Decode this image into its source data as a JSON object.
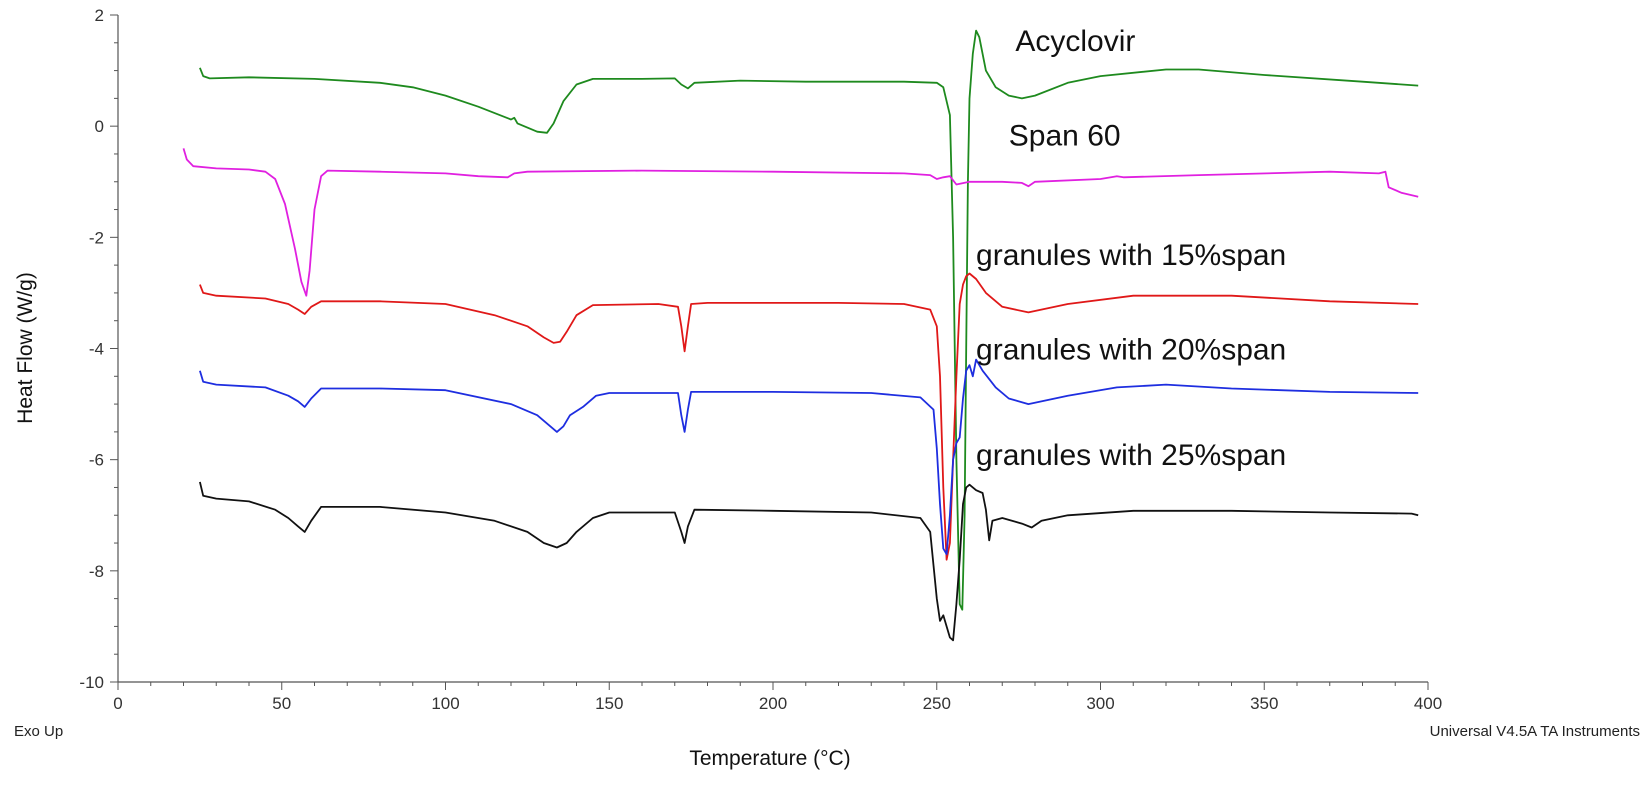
{
  "chart_data": {
    "type": "line",
    "xlabel": "Temperature (°C)",
    "ylabel": "Heat Flow (W/g)",
    "xlim": [
      0,
      400
    ],
    "ylim": [
      -10,
      2
    ],
    "x_ticks": [
      0,
      50,
      100,
      150,
      200,
      250,
      300,
      350,
      400
    ],
    "y_ticks": [
      2,
      0,
      -2,
      -4,
      -6,
      -8,
      -10
    ],
    "grid": false,
    "legend": "inline labels at right",
    "footer_left": "Exo Up",
    "footer_right": "Universal V4.5A TA Instruments",
    "series": [
      {
        "name": "Acyclovir",
        "color": "#1e8a1e",
        "points": [
          [
            25,
            1.05
          ],
          [
            26,
            0.9
          ],
          [
            28,
            0.86
          ],
          [
            40,
            0.88
          ],
          [
            60,
            0.85
          ],
          [
            80,
            0.78
          ],
          [
            90,
            0.7
          ],
          [
            100,
            0.55
          ],
          [
            110,
            0.35
          ],
          [
            120,
            0.12
          ],
          [
            121,
            0.15
          ],
          [
            122,
            0.05
          ],
          [
            128,
            -0.1
          ],
          [
            131,
            -0.12
          ],
          [
            133,
            0.05
          ],
          [
            136,
            0.45
          ],
          [
            140,
            0.75
          ],
          [
            145,
            0.85
          ],
          [
            160,
            0.85
          ],
          [
            170,
            0.86
          ],
          [
            172,
            0.75
          ],
          [
            174,
            0.68
          ],
          [
            176,
            0.78
          ],
          [
            190,
            0.82
          ],
          [
            210,
            0.8
          ],
          [
            240,
            0.8
          ],
          [
            250,
            0.78
          ],
          [
            252,
            0.7
          ],
          [
            254,
            0.2
          ],
          [
            255,
            -2
          ],
          [
            256,
            -6
          ],
          [
            257,
            -8.6
          ],
          [
            257.8,
            -8.7
          ],
          [
            258.5,
            -7
          ],
          [
            259,
            -4
          ],
          [
            259.5,
            -1
          ],
          [
            260,
            0.5
          ],
          [
            261,
            1.3
          ],
          [
            262,
            1.72
          ],
          [
            263,
            1.6
          ],
          [
            265,
            1.0
          ],
          [
            268,
            0.7
          ],
          [
            272,
            0.55
          ],
          [
            276,
            0.5
          ],
          [
            280,
            0.55
          ],
          [
            290,
            0.78
          ],
          [
            300,
            0.9
          ],
          [
            320,
            1.02
          ],
          [
            330,
            1.02
          ],
          [
            350,
            0.92
          ],
          [
            380,
            0.8
          ],
          [
            397,
            0.73
          ]
        ]
      },
      {
        "name": "Span 60",
        "color": "#e020e0",
        "points": [
          [
            20,
            -0.4
          ],
          [
            21,
            -0.6
          ],
          [
            23,
            -0.72
          ],
          [
            30,
            -0.76
          ],
          [
            40,
            -0.78
          ],
          [
            45,
            -0.82
          ],
          [
            48,
            -0.95
          ],
          [
            51,
            -1.4
          ],
          [
            54,
            -2.2
          ],
          [
            56,
            -2.8
          ],
          [
            57.5,
            -3.05
          ],
          [
            58.5,
            -2.6
          ],
          [
            60,
            -1.5
          ],
          [
            62,
            -0.9
          ],
          [
            64,
            -0.8
          ],
          [
            80,
            -0.82
          ],
          [
            100,
            -0.85
          ],
          [
            110,
            -0.9
          ],
          [
            119,
            -0.92
          ],
          [
            121,
            -0.85
          ],
          [
            125,
            -0.82
          ],
          [
            160,
            -0.8
          ],
          [
            200,
            -0.82
          ],
          [
            240,
            -0.85
          ],
          [
            248,
            -0.88
          ],
          [
            250,
            -0.95
          ],
          [
            252,
            -0.92
          ],
          [
            254,
            -0.9
          ],
          [
            256,
            -1.05
          ],
          [
            260,
            -1.0
          ],
          [
            270,
            -1.0
          ],
          [
            276,
            -1.02
          ],
          [
            278,
            -1.08
          ],
          [
            280,
            -1.0
          ],
          [
            300,
            -0.95
          ],
          [
            305,
            -0.9
          ],
          [
            307,
            -0.92
          ],
          [
            330,
            -0.88
          ],
          [
            370,
            -0.82
          ],
          [
            385,
            -0.85
          ],
          [
            387,
            -0.82
          ],
          [
            388,
            -1.1
          ],
          [
            392,
            -1.2
          ],
          [
            397,
            -1.27
          ]
        ]
      },
      {
        "name": "granules with 15%span",
        "color": "#e01818",
        "points": [
          [
            25,
            -2.85
          ],
          [
            26,
            -3.0
          ],
          [
            30,
            -3.05
          ],
          [
            45,
            -3.1
          ],
          [
            52,
            -3.2
          ],
          [
            55,
            -3.3
          ],
          [
            57,
            -3.38
          ],
          [
            59,
            -3.25
          ],
          [
            62,
            -3.15
          ],
          [
            80,
            -3.15
          ],
          [
            100,
            -3.2
          ],
          [
            115,
            -3.4
          ],
          [
            125,
            -3.6
          ],
          [
            130,
            -3.8
          ],
          [
            133,
            -3.9
          ],
          [
            135,
            -3.88
          ],
          [
            137,
            -3.7
          ],
          [
            140,
            -3.4
          ],
          [
            145,
            -3.22
          ],
          [
            165,
            -3.2
          ],
          [
            171,
            -3.25
          ],
          [
            172,
            -3.6
          ],
          [
            173,
            -4.05
          ],
          [
            174,
            -3.6
          ],
          [
            175,
            -3.2
          ],
          [
            180,
            -3.18
          ],
          [
            220,
            -3.18
          ],
          [
            240,
            -3.2
          ],
          [
            248,
            -3.3
          ],
          [
            250,
            -3.6
          ],
          [
            251,
            -4.5
          ],
          [
            252,
            -6.5
          ],
          [
            253,
            -7.8
          ],
          [
            254,
            -7.5
          ],
          [
            255,
            -6.0
          ],
          [
            256,
            -4.5
          ],
          [
            257,
            -3.2
          ],
          [
            258,
            -2.85
          ],
          [
            259,
            -2.7
          ],
          [
            260,
            -2.65
          ],
          [
            262,
            -2.75
          ],
          [
            265,
            -3.0
          ],
          [
            270,
            -3.25
          ],
          [
            278,
            -3.35
          ],
          [
            290,
            -3.2
          ],
          [
            310,
            -3.05
          ],
          [
            340,
            -3.05
          ],
          [
            370,
            -3.15
          ],
          [
            397,
            -3.2
          ]
        ]
      },
      {
        "name": "granules with 20%span",
        "color": "#1e2ee0",
        "points": [
          [
            25,
            -4.4
          ],
          [
            26,
            -4.6
          ],
          [
            30,
            -4.65
          ],
          [
            45,
            -4.7
          ],
          [
            52,
            -4.85
          ],
          [
            55,
            -4.95
          ],
          [
            57,
            -5.05
          ],
          [
            59,
            -4.9
          ],
          [
            62,
            -4.72
          ],
          [
            80,
            -4.72
          ],
          [
            100,
            -4.75
          ],
          [
            120,
            -5.0
          ],
          [
            128,
            -5.2
          ],
          [
            132,
            -5.4
          ],
          [
            134,
            -5.5
          ],
          [
            136,
            -5.4
          ],
          [
            138,
            -5.2
          ],
          [
            142,
            -5.05
          ],
          [
            146,
            -4.85
          ],
          [
            150,
            -4.8
          ],
          [
            171,
            -4.8
          ],
          [
            172,
            -5.2
          ],
          [
            173,
            -5.5
          ],
          [
            174,
            -5.1
          ],
          [
            175,
            -4.78
          ],
          [
            200,
            -4.78
          ],
          [
            230,
            -4.8
          ],
          [
            245,
            -4.88
          ],
          [
            249,
            -5.1
          ],
          [
            250,
            -5.8
          ],
          [
            251,
            -6.8
          ],
          [
            252,
            -7.6
          ],
          [
            253,
            -7.7
          ],
          [
            254,
            -7.0
          ],
          [
            255,
            -6.0
          ],
          [
            256,
            -5.7
          ],
          [
            257,
            -5.6
          ],
          [
            258,
            -4.9
          ],
          [
            259,
            -4.4
          ],
          [
            260,
            -4.3
          ],
          [
            261,
            -4.5
          ],
          [
            262,
            -4.2
          ],
          [
            264,
            -4.4
          ],
          [
            268,
            -4.7
          ],
          [
            272,
            -4.9
          ],
          [
            278,
            -5.0
          ],
          [
            290,
            -4.85
          ],
          [
            305,
            -4.7
          ],
          [
            320,
            -4.65
          ],
          [
            340,
            -4.72
          ],
          [
            370,
            -4.78
          ],
          [
            397,
            -4.8
          ]
        ]
      },
      {
        "name": "granules with 25%span",
        "color": "#111111",
        "points": [
          [
            25,
            -6.4
          ],
          [
            26,
            -6.65
          ],
          [
            30,
            -6.7
          ],
          [
            40,
            -6.75
          ],
          [
            48,
            -6.9
          ],
          [
            52,
            -7.05
          ],
          [
            55,
            -7.2
          ],
          [
            57,
            -7.3
          ],
          [
            59,
            -7.1
          ],
          [
            62,
            -6.85
          ],
          [
            80,
            -6.85
          ],
          [
            100,
            -6.95
          ],
          [
            115,
            -7.1
          ],
          [
            125,
            -7.3
          ],
          [
            130,
            -7.5
          ],
          [
            134,
            -7.58
          ],
          [
            137,
            -7.5
          ],
          [
            140,
            -7.3
          ],
          [
            145,
            -7.05
          ],
          [
            150,
            -6.95
          ],
          [
            170,
            -6.95
          ],
          [
            172,
            -7.3
          ],
          [
            173,
            -7.5
          ],
          [
            174,
            -7.2
          ],
          [
            176,
            -6.9
          ],
          [
            200,
            -6.92
          ],
          [
            230,
            -6.95
          ],
          [
            245,
            -7.05
          ],
          [
            248,
            -7.3
          ],
          [
            249,
            -7.9
          ],
          [
            250,
            -8.5
          ],
          [
            251,
            -8.9
          ],
          [
            252,
            -8.8
          ],
          [
            253,
            -9.0
          ],
          [
            254,
            -9.2
          ],
          [
            255,
            -9.25
          ],
          [
            256,
            -8.6
          ],
          [
            257,
            -7.8
          ],
          [
            258,
            -6.8
          ],
          [
            259,
            -6.5
          ],
          [
            260,
            -6.45
          ],
          [
            262,
            -6.55
          ],
          [
            264,
            -6.6
          ],
          [
            265,
            -6.9
          ],
          [
            266,
            -7.45
          ],
          [
            267,
            -7.1
          ],
          [
            270,
            -7.05
          ],
          [
            276,
            -7.15
          ],
          [
            279,
            -7.22
          ],
          [
            282,
            -7.1
          ],
          [
            290,
            -7.0
          ],
          [
            310,
            -6.92
          ],
          [
            340,
            -6.92
          ],
          [
            370,
            -6.95
          ],
          [
            395,
            -6.97
          ],
          [
            397,
            -7.0
          ]
        ]
      }
    ]
  }
}
